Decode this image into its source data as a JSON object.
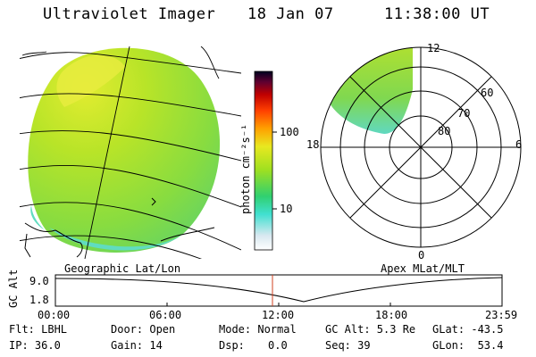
{
  "header": {
    "title": "Ultraviolet Imager",
    "date": "18 Jan 07",
    "time": "11:38:00 UT"
  },
  "colorbar": {
    "unit_label": "photon cm⁻²s⁻¹",
    "ticks": [
      "100",
      "10"
    ],
    "colors": [
      "#ffffff",
      "#d8e8f0",
      "#40e0d0",
      "#30d070",
      "#a0e020",
      "#e8e820",
      "#ffa000",
      "#ff4000",
      "#c00000",
      "#600030",
      "#000020"
    ]
  },
  "polar_plot": {
    "top_label": "12",
    "bottom_label": "0",
    "left_label": "18",
    "right_label": "6",
    "ring_labels": [
      "60",
      "70",
      "80"
    ]
  },
  "labels": {
    "left_panel": "Geographic Lat/Lon",
    "right_panel": "Apex MLat/MLT"
  },
  "altitude_plot": {
    "ylabel": "GC Alt",
    "yticks": [
      "9.0",
      "1.8"
    ],
    "xticks": [
      "00:00",
      "06:00",
      "12:00",
      "18:00",
      "23:59"
    ]
  },
  "footer": {
    "flt": "Flt: LBHL",
    "ip": "IP: 36.0",
    "door": "Door: Open",
    "gain": "Gain: 14",
    "mode": "Mode: Normal",
    "dsp": "Dsp:",
    "dsp_val": "0.0",
    "gcalt": "GC Alt: 5.3 Re",
    "seq": "Seq: 39",
    "glat": "GLat: -43.5",
    "glon": "GLon:  53.4"
  }
}
